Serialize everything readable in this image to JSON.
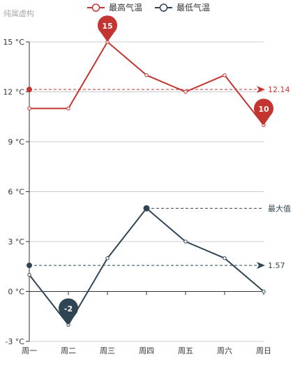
{
  "chart_data": {
    "type": "line",
    "subtitle": "纯属虚构",
    "categories": [
      "周一",
      "周二",
      "周三",
      "周四",
      "周五",
      "周六",
      "周日"
    ],
    "y_unit": "°C",
    "ylim": [
      -3,
      15
    ],
    "y_ticks": [
      -3,
      0,
      3,
      6,
      9,
      12,
      15
    ],
    "grid": true,
    "legend_position": "top-center",
    "series": [
      {
        "name": "最高气温",
        "color": "#c23531",
        "values": [
          11,
          11,
          15,
          13,
          12,
          13,
          10
        ],
        "mark_points": [
          {
            "label": "15",
            "category_index": 2,
            "value": 15
          },
          {
            "label": "10",
            "category_index": 6,
            "value": 10
          }
        ],
        "mark_line": {
          "label": "12.14",
          "value": 12.14
        }
      },
      {
        "name": "最低气温",
        "color": "#2f4554",
        "values": [
          1,
          -2,
          2,
          5,
          3,
          2,
          0
        ],
        "mark_points": [
          {
            "label": "-2",
            "category_index": 1,
            "value": -2
          }
        ],
        "mark_line": {
          "label": "1.57",
          "value": 1.57
        },
        "max_line": {
          "label": "最大值",
          "value": 5,
          "category_index": 3
        }
      }
    ]
  }
}
